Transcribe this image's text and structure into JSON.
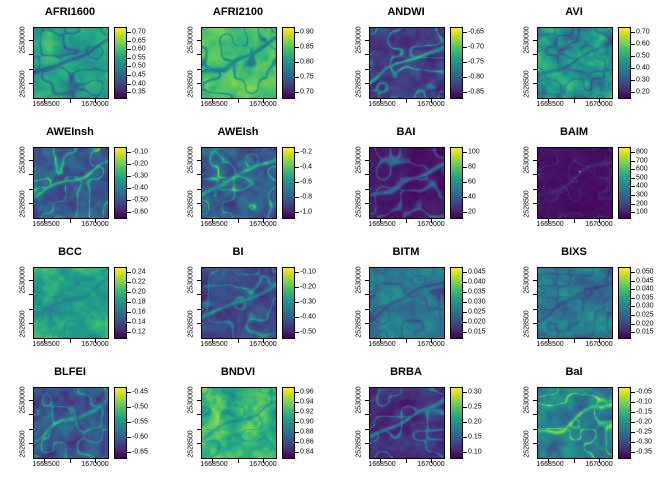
{
  "figure": {
    "background": "#ffffff",
    "frame_color": "#000000",
    "rows": 4,
    "cols": 4
  },
  "palette": {
    "name": "viridis",
    "anchors": [
      "#440154",
      "#482878",
      "#3e4a89",
      "#31688e",
      "#26828e",
      "#1f9e89",
      "#35b779",
      "#6ece58",
      "#b5de2b",
      "#fde725"
    ]
  },
  "axes": {
    "x_tick_labels": [
      "1668500",
      "1670000"
    ],
    "y_tick_labels": [
      "2530000",
      "2528500"
    ]
  },
  "chart_data": [
    {
      "type": "heatmap",
      "title": "AFRI1600",
      "x_tick_labels": [
        "1668500",
        "1670000"
      ],
      "y_tick_labels": [
        "2530000",
        "2528500"
      ],
      "colorbar_ticks": [
        "0.70",
        "0.65",
        "0.60",
        "0.55",
        "0.50",
        "0.45",
        "0.40",
        "0.35"
      ],
      "value_range": [
        0.35,
        0.7
      ],
      "appearance": {
        "base": 0.6,
        "amp": 0.14,
        "river": -0.4,
        "seed": 101,
        "spots": false
      }
    },
    {
      "type": "heatmap",
      "title": "AFRI2100",
      "x_tick_labels": [
        "1668500",
        "1670000"
      ],
      "y_tick_labels": [
        "2530000",
        "2528500"
      ],
      "colorbar_ticks": [
        "0.90",
        "0.85",
        "0.80",
        "0.75",
        "0.70"
      ],
      "value_range": [
        0.7,
        0.9
      ],
      "appearance": {
        "base": 0.72,
        "amp": 0.12,
        "river": -0.42,
        "seed": 202,
        "spots": false
      }
    },
    {
      "type": "heatmap",
      "title": "ANDWI",
      "x_tick_labels": [
        "1668500",
        "1670000"
      ],
      "y_tick_labels": [
        "2530000",
        "2528500"
      ],
      "colorbar_ticks": [
        "-0.65",
        "-0.70",
        "-0.75",
        "-0.80",
        "-0.85"
      ],
      "value_range": [
        -0.85,
        -0.65
      ],
      "appearance": {
        "base": 0.17,
        "amp": 0.13,
        "river": 0.55,
        "seed": 303,
        "spots": false
      }
    },
    {
      "type": "heatmap",
      "title": "AVI",
      "x_tick_labels": [
        "1668500",
        "1670000"
      ],
      "y_tick_labels": [
        "2530000",
        "2528500"
      ],
      "colorbar_ticks": [
        "0.70",
        "0.60",
        "0.50",
        "0.40",
        "0.30",
        "0.20"
      ],
      "value_range": [
        0.2,
        0.7
      ],
      "appearance": {
        "base": 0.52,
        "amp": 0.26,
        "river": -0.28,
        "seed": 404,
        "spots": false
      }
    },
    {
      "type": "heatmap",
      "title": "AWEInsh",
      "x_tick_labels": [
        "1668500",
        "1670000"
      ],
      "y_tick_labels": [
        "2530000",
        "2528500"
      ],
      "colorbar_ticks": [
        "-0.10",
        "-0.20",
        "-0.30",
        "-0.40",
        "-0.50",
        "-0.60"
      ],
      "value_range": [
        -0.6,
        -0.1
      ],
      "appearance": {
        "base": 0.28,
        "amp": 0.17,
        "river": 0.5,
        "seed": 505,
        "spots": false
      }
    },
    {
      "type": "heatmap",
      "title": "AWEIsh",
      "x_tick_labels": [
        "1668500",
        "1670000"
      ],
      "y_tick_labels": [
        "2530000",
        "2528500"
      ],
      "colorbar_ticks": [
        "-0.2",
        "-0.4",
        "-0.6",
        "-0.8",
        "-1.0"
      ],
      "value_range": [
        -1.0,
        -0.2
      ],
      "appearance": {
        "base": 0.28,
        "amp": 0.17,
        "river": 0.5,
        "seed": 606,
        "spots": false
      }
    },
    {
      "type": "heatmap",
      "title": "BAI",
      "x_tick_labels": [
        "1668500",
        "1670000"
      ],
      "y_tick_labels": [
        "2530000",
        "2528500"
      ],
      "colorbar_ticks": [
        "100",
        "80",
        "60",
        "40",
        "20"
      ],
      "value_range": [
        20,
        100
      ],
      "appearance": {
        "base": 0.06,
        "amp": 0.05,
        "river": 0.38,
        "seed": 707,
        "spots": false
      }
    },
    {
      "type": "heatmap",
      "title": "BAIM",
      "x_tick_labels": [
        "1668500",
        "1670000"
      ],
      "y_tick_labels": [
        "2530000",
        "2528500"
      ],
      "colorbar_ticks": [
        "800",
        "700",
        "600",
        "500",
        "400",
        "300",
        "200",
        "100"
      ],
      "value_range": [
        100,
        800
      ],
      "appearance": {
        "base": 0.045,
        "amp": 0.035,
        "river": 0.1,
        "seed": 808,
        "spots": true
      }
    },
    {
      "type": "heatmap",
      "title": "BCC",
      "x_tick_labels": [
        "1668500",
        "1670000"
      ],
      "y_tick_labels": [
        "2530000",
        "2528500"
      ],
      "colorbar_ticks": [
        "0.24",
        "0.22",
        "0.20",
        "0.18",
        "0.16",
        "0.14",
        "0.12"
      ],
      "value_range": [
        0.12,
        0.24
      ],
      "appearance": {
        "base": 0.58,
        "amp": 0.16,
        "river": -0.1,
        "seed": 909,
        "spots": false
      }
    },
    {
      "type": "heatmap",
      "title": "BI",
      "x_tick_labels": [
        "1668500",
        "1670000"
      ],
      "y_tick_labels": [
        "2530000",
        "2528500"
      ],
      "colorbar_ticks": [
        "-0.10",
        "-0.20",
        "-0.30",
        "-0.40",
        "-0.50"
      ],
      "value_range": [
        -0.5,
        -0.1
      ],
      "appearance": {
        "base": 0.22,
        "amp": 0.12,
        "river": 0.42,
        "seed": 1010,
        "spots": false
      }
    },
    {
      "type": "heatmap",
      "title": "BITM",
      "x_tick_labels": [
        "1668500",
        "1670000"
      ],
      "y_tick_labels": [
        "2530000",
        "2528500"
      ],
      "colorbar_ticks": [
        "0.045",
        "0.040",
        "0.035",
        "0.030",
        "0.025",
        "0.020",
        "0.015"
      ],
      "value_range": [
        0.015,
        0.045
      ],
      "appearance": {
        "base": 0.4,
        "amp": 0.16,
        "river": -0.22,
        "seed": 1111,
        "spots": false
      }
    },
    {
      "type": "heatmap",
      "title": "BIXS",
      "x_tick_labels": [
        "1668500",
        "1670000"
      ],
      "y_tick_labels": [
        "2530000",
        "2528500"
      ],
      "colorbar_ticks": [
        "0.050",
        "0.045",
        "0.040",
        "0.035",
        "0.030",
        "0.025",
        "0.020",
        "0.015"
      ],
      "value_range": [
        0.015,
        0.05
      ],
      "appearance": {
        "base": 0.4,
        "amp": 0.16,
        "river": -0.22,
        "seed": 1212,
        "spots": false
      }
    },
    {
      "type": "heatmap",
      "title": "BLFEI",
      "x_tick_labels": [
        "1668500",
        "1670000"
      ],
      "y_tick_labels": [
        "2530000",
        "2528500"
      ],
      "colorbar_ticks": [
        "-0.45",
        "-0.50",
        "-0.55",
        "-0.60",
        "-0.65"
      ],
      "value_range": [
        -0.65,
        -0.45
      ],
      "appearance": {
        "base": 0.24,
        "amp": 0.18,
        "river": 0.42,
        "seed": 1313,
        "spots": false
      }
    },
    {
      "type": "heatmap",
      "title": "BNDVI",
      "x_tick_labels": [
        "1668500",
        "1670000"
      ],
      "y_tick_labels": [
        "2530000",
        "2528500"
      ],
      "colorbar_ticks": [
        "0.96",
        "0.94",
        "0.92",
        "0.90",
        "0.88",
        "0.86",
        "0.84"
      ],
      "value_range": [
        0.84,
        0.96
      ],
      "appearance": {
        "base": 0.68,
        "amp": 0.2,
        "river": -0.22,
        "seed": 1414,
        "spots": false
      }
    },
    {
      "type": "heatmap",
      "title": "BRBA",
      "x_tick_labels": [
        "1668500",
        "1670000"
      ],
      "y_tick_labels": [
        "2530000",
        "2528500"
      ],
      "colorbar_ticks": [
        "0.30",
        "0.25",
        "0.20",
        "0.15",
        "0.10"
      ],
      "value_range": [
        0.1,
        0.3
      ],
      "appearance": {
        "base": 0.13,
        "amp": 0.1,
        "river": 0.45,
        "seed": 1515,
        "spots": false
      }
    },
    {
      "type": "heatmap",
      "title": "BaI",
      "x_tick_labels": [
        "1668500",
        "1670000"
      ],
      "y_tick_labels": [
        "2530000",
        "2528500"
      ],
      "colorbar_ticks": [
        "-0.05",
        "-0.10",
        "-0.15",
        "-0.20",
        "-0.25",
        "-0.30",
        "-0.35"
      ],
      "value_range": [
        -0.35,
        -0.05
      ],
      "appearance": {
        "base": 0.42,
        "amp": 0.2,
        "river": 0.48,
        "seed": 1616,
        "spots": false
      }
    }
  ]
}
